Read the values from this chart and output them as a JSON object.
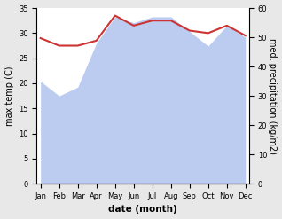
{
  "months": [
    "Jan",
    "Feb",
    "Mar",
    "Apr",
    "May",
    "Jun",
    "Jul",
    "Aug",
    "Sep",
    "Oct",
    "Nov",
    "Dec"
  ],
  "x": [
    0,
    1,
    2,
    3,
    4,
    5,
    6,
    7,
    8,
    9,
    10,
    11
  ],
  "temp": [
    29.0,
    27.5,
    27.5,
    28.5,
    33.5,
    31.5,
    32.5,
    32.5,
    30.5,
    30.0,
    31.5,
    29.5
  ],
  "precip": [
    35.0,
    30.0,
    33.0,
    48.0,
    57.0,
    55.0,
    57.0,
    57.0,
    52.0,
    47.0,
    54.0,
    50.0
  ],
  "temp_ylim": [
    0,
    35
  ],
  "precip_ylim": [
    0,
    60
  ],
  "temp_color": "#cc3333",
  "precip_fill_color": "#b0c4ee",
  "precip_fill_alpha": 0.85,
  "xlabel": "date (month)",
  "ylabel_left": "max temp (C)",
  "ylabel_right": "med. precipitation (kg/m2)",
  "bg_color": "#e8e8e8",
  "plot_bg_color": "#ffffff"
}
